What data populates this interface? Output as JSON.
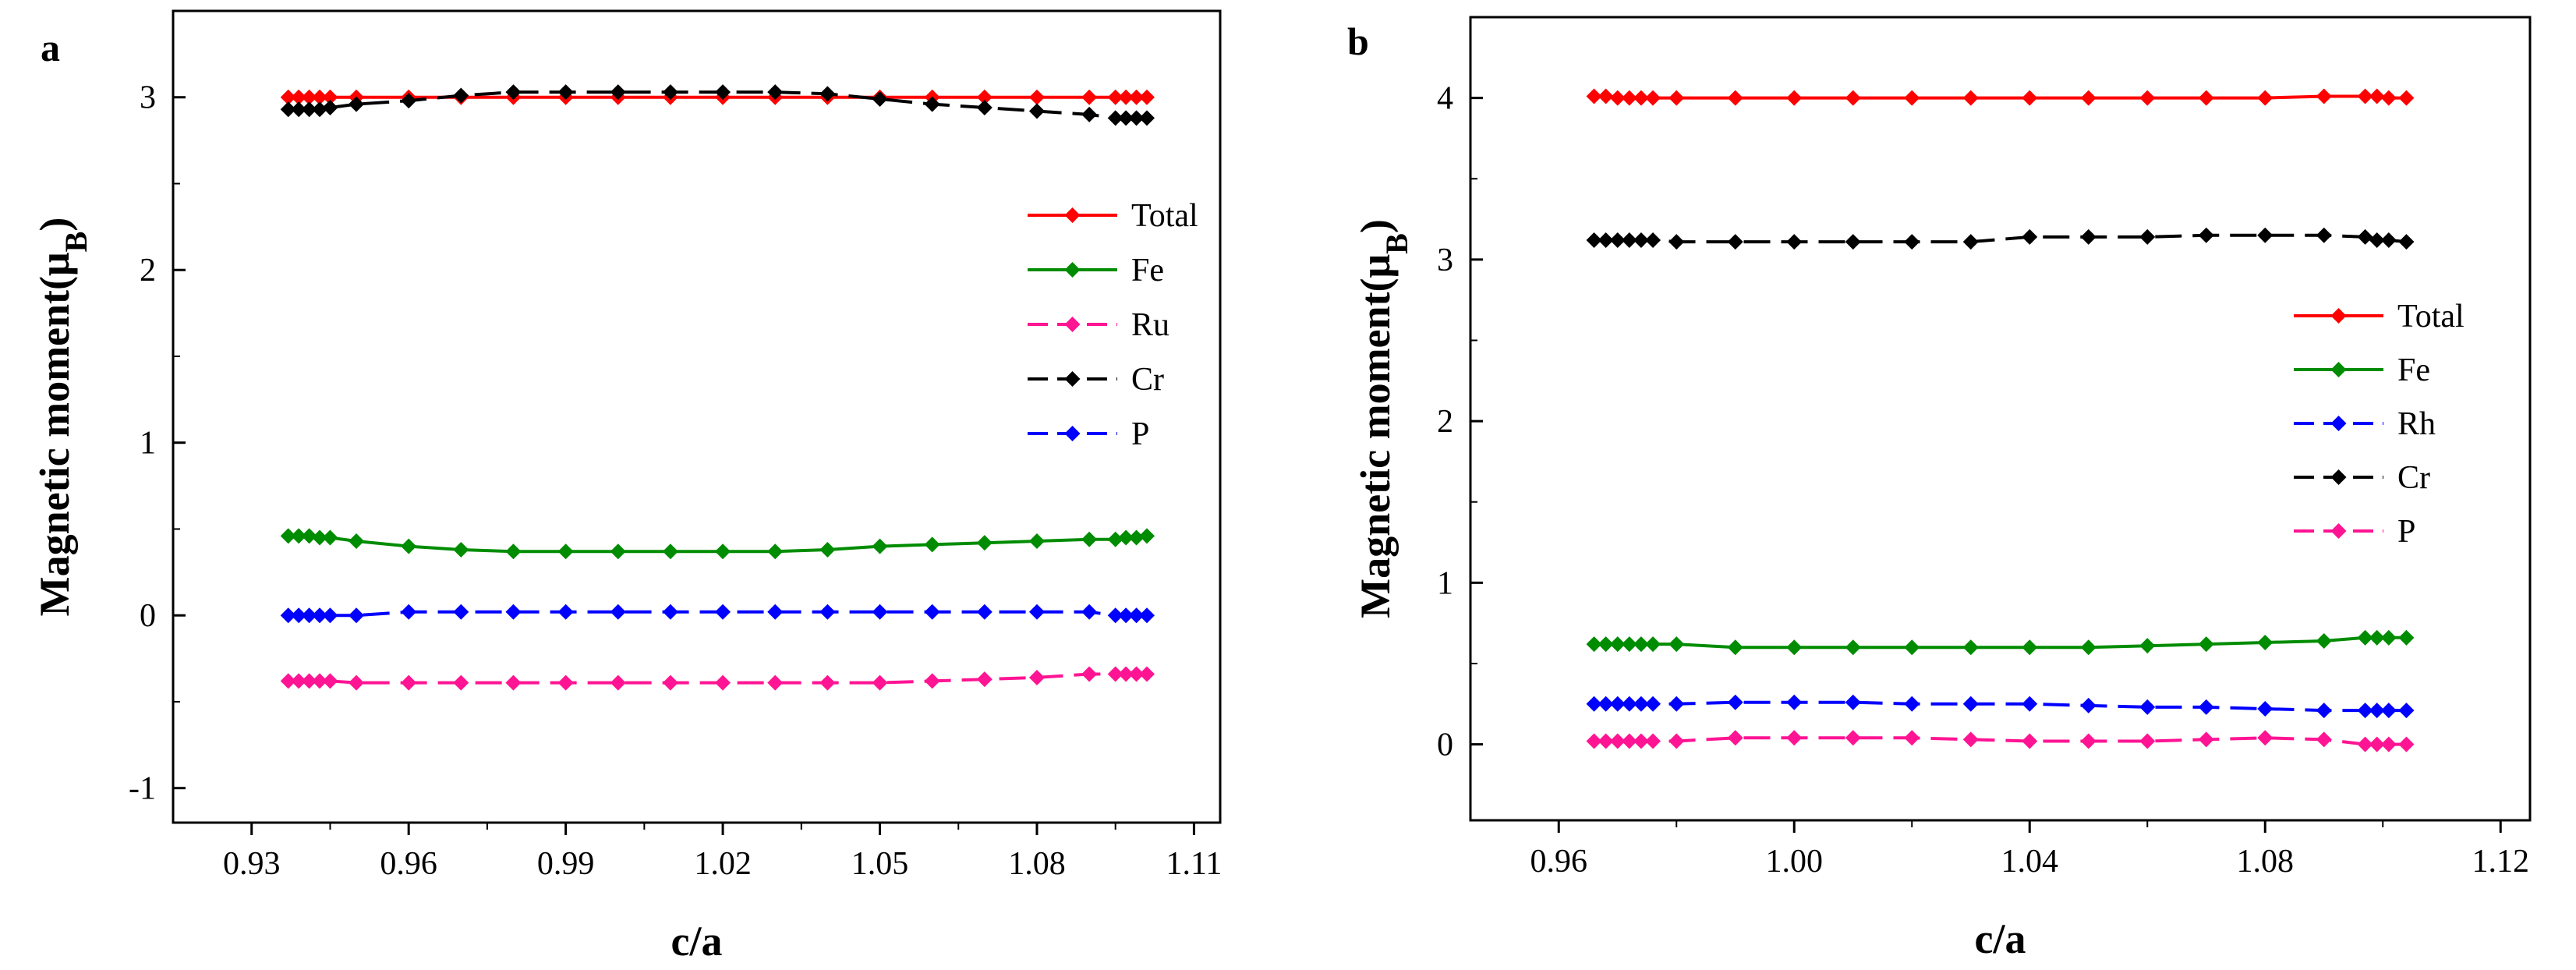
{
  "figure": {
    "panels": [
      "a",
      "b"
    ]
  },
  "chart_data": [
    {
      "panel": "a",
      "type": "line",
      "title": "",
      "xlabel": "c/a",
      "ylabel_main": "Magnetic moment(",
      "ylabel_mu": "μ",
      "ylabel_sub": "B",
      "ylabel_close": ")",
      "xlim": [
        0.915,
        1.115
      ],
      "ylim": [
        -1.2,
        3.5
      ],
      "xticks": [
        0.93,
        0.96,
        0.99,
        1.02,
        1.05,
        1.08,
        1.11
      ],
      "xtick_labels": [
        "0.93",
        "0.96",
        "0.99",
        "1.02",
        "1.05",
        "1.08",
        "1.11"
      ],
      "yticks": [
        -1,
        0,
        1,
        2,
        3
      ],
      "ytick_labels": [
        "-1",
        "0",
        "1",
        "2",
        "3"
      ],
      "legend_position": "right",
      "series": [
        {
          "name": "Total",
          "color": "#ff0000",
          "dash": "solid",
          "x": [
            0.937,
            0.939,
            0.941,
            0.943,
            0.945,
            0.95,
            0.96,
            0.97,
            0.98,
            0.99,
            1.0,
            1.01,
            1.02,
            1.03,
            1.04,
            1.05,
            1.06,
            1.07,
            1.08,
            1.09,
            1.095,
            1.097,
            1.099,
            1.101
          ],
          "y": [
            3.0,
            3.0,
            3.0,
            3.0,
            3.0,
            3.0,
            3.0,
            3.0,
            3.0,
            3.0,
            3.0,
            3.0,
            3.0,
            3.0,
            3.0,
            3.0,
            3.0,
            3.0,
            3.0,
            3.0,
            3.0,
            3.0,
            3.0,
            3.0
          ]
        },
        {
          "name": "Fe",
          "color": "#008c00",
          "dash": "solid",
          "x": [
            0.937,
            0.939,
            0.941,
            0.943,
            0.945,
            0.95,
            0.96,
            0.97,
            0.98,
            0.99,
            1.0,
            1.01,
            1.02,
            1.03,
            1.04,
            1.05,
            1.06,
            1.07,
            1.08,
            1.09,
            1.095,
            1.097,
            1.099,
            1.101
          ],
          "y": [
            0.46,
            0.46,
            0.46,
            0.45,
            0.45,
            0.43,
            0.4,
            0.38,
            0.37,
            0.37,
            0.37,
            0.37,
            0.37,
            0.37,
            0.38,
            0.4,
            0.41,
            0.42,
            0.43,
            0.44,
            0.44,
            0.45,
            0.45,
            0.46
          ]
        },
        {
          "name": "Ru",
          "color": "#ff1493",
          "dash": "dash",
          "x": [
            0.937,
            0.939,
            0.941,
            0.943,
            0.945,
            0.95,
            0.96,
            0.97,
            0.98,
            0.99,
            1.0,
            1.01,
            1.02,
            1.03,
            1.04,
            1.05,
            1.06,
            1.07,
            1.08,
            1.09,
            1.095,
            1.097,
            1.099,
            1.101
          ],
          "y": [
            -0.38,
            -0.38,
            -0.38,
            -0.38,
            -0.38,
            -0.39,
            -0.39,
            -0.39,
            -0.39,
            -0.39,
            -0.39,
            -0.39,
            -0.39,
            -0.39,
            -0.39,
            -0.39,
            -0.38,
            -0.37,
            -0.36,
            -0.34,
            -0.34,
            -0.34,
            -0.34,
            -0.34
          ]
        },
        {
          "name": "Cr",
          "color": "#000000",
          "dash": "dash",
          "x": [
            0.937,
            0.939,
            0.941,
            0.943,
            0.945,
            0.95,
            0.96,
            0.97,
            0.98,
            0.99,
            1.0,
            1.01,
            1.02,
            1.03,
            1.04,
            1.05,
            1.06,
            1.07,
            1.08,
            1.09,
            1.095,
            1.097,
            1.099,
            1.101
          ],
          "y": [
            2.93,
            2.93,
            2.93,
            2.93,
            2.94,
            2.96,
            2.98,
            3.01,
            3.03,
            3.03,
            3.03,
            3.03,
            3.03,
            3.03,
            3.02,
            2.99,
            2.96,
            2.94,
            2.92,
            2.9,
            2.88,
            2.88,
            2.88,
            2.88
          ]
        },
        {
          "name": "P",
          "color": "#0000ff",
          "dash": "dash",
          "x": [
            0.937,
            0.939,
            0.941,
            0.943,
            0.945,
            0.95,
            0.96,
            0.97,
            0.98,
            0.99,
            1.0,
            1.01,
            1.02,
            1.03,
            1.04,
            1.05,
            1.06,
            1.07,
            1.08,
            1.09,
            1.095,
            1.097,
            1.099,
            1.101
          ],
          "y": [
            0.0,
            0.0,
            0.0,
            0.0,
            0.0,
            0.0,
            0.02,
            0.02,
            0.02,
            0.02,
            0.02,
            0.02,
            0.02,
            0.02,
            0.02,
            0.02,
            0.02,
            0.02,
            0.02,
            0.02,
            0.0,
            0.0,
            0.0,
            0.0
          ]
        }
      ]
    },
    {
      "panel": "b",
      "type": "line",
      "title": "",
      "xlabel": "c/a",
      "ylabel_main": "Magnetic moment(",
      "ylabel_mu": "μ",
      "ylabel_sub": "B",
      "ylabel_close": ")",
      "xlim": [
        0.945,
        1.125
      ],
      "ylim": [
        -0.47,
        4.5
      ],
      "xticks": [
        0.96,
        1.0,
        1.04,
        1.08,
        1.12
      ],
      "xtick_labels": [
        "0.96",
        "1.00",
        "1.04",
        "1.08",
        "1.12"
      ],
      "yticks": [
        0,
        1,
        2,
        3,
        4
      ],
      "ytick_labels": [
        "0",
        "1",
        "2",
        "3",
        "4"
      ],
      "legend_position": "right",
      "series": [
        {
          "name": "Total",
          "color": "#ff0000",
          "dash": "solid",
          "x": [
            0.966,
            0.968,
            0.97,
            0.972,
            0.974,
            0.976,
            0.98,
            0.99,
            1.0,
            1.01,
            1.02,
            1.03,
            1.04,
            1.05,
            1.06,
            1.07,
            1.08,
            1.09,
            1.097,
            1.099,
            1.101,
            1.104
          ],
          "y": [
            4.01,
            4.01,
            4.0,
            4.0,
            4.0,
            4.0,
            4.0,
            4.0,
            4.0,
            4.0,
            4.0,
            4.0,
            4.0,
            4.0,
            4.0,
            4.0,
            4.0,
            4.01,
            4.01,
            4.01,
            4.0,
            4.0
          ]
        },
        {
          "name": "Fe",
          "color": "#008c00",
          "dash": "solid",
          "x": [
            0.966,
            0.968,
            0.97,
            0.972,
            0.974,
            0.976,
            0.98,
            0.99,
            1.0,
            1.01,
            1.02,
            1.03,
            1.04,
            1.05,
            1.06,
            1.07,
            1.08,
            1.09,
            1.097,
            1.099,
            1.101,
            1.104
          ],
          "y": [
            0.62,
            0.62,
            0.62,
            0.62,
            0.62,
            0.62,
            0.62,
            0.6,
            0.6,
            0.6,
            0.6,
            0.6,
            0.6,
            0.6,
            0.61,
            0.62,
            0.63,
            0.64,
            0.66,
            0.66,
            0.66,
            0.66
          ]
        },
        {
          "name": "Rh",
          "color": "#0000ff",
          "dash": "dash",
          "x": [
            0.966,
            0.968,
            0.97,
            0.972,
            0.974,
            0.976,
            0.98,
            0.99,
            1.0,
            1.01,
            1.02,
            1.03,
            1.04,
            1.05,
            1.06,
            1.07,
            1.08,
            1.09,
            1.097,
            1.099,
            1.101,
            1.104
          ],
          "y": [
            0.25,
            0.25,
            0.25,
            0.25,
            0.25,
            0.25,
            0.25,
            0.26,
            0.26,
            0.26,
            0.25,
            0.25,
            0.25,
            0.24,
            0.23,
            0.23,
            0.22,
            0.21,
            0.21,
            0.21,
            0.21,
            0.21
          ]
        },
        {
          "name": "Cr",
          "color": "#000000",
          "dash": "dash",
          "x": [
            0.966,
            0.968,
            0.97,
            0.972,
            0.974,
            0.976,
            0.98,
            0.99,
            1.0,
            1.01,
            1.02,
            1.03,
            1.04,
            1.05,
            1.06,
            1.07,
            1.08,
            1.09,
            1.097,
            1.099,
            1.101,
            1.104
          ],
          "y": [
            3.12,
            3.12,
            3.12,
            3.12,
            3.12,
            3.12,
            3.11,
            3.11,
            3.11,
            3.11,
            3.11,
            3.11,
            3.14,
            3.14,
            3.14,
            3.15,
            3.15,
            3.15,
            3.14,
            3.12,
            3.12,
            3.11
          ]
        },
        {
          "name": "P",
          "color": "#ff1493",
          "dash": "dash",
          "x": [
            0.966,
            0.968,
            0.97,
            0.972,
            0.974,
            0.976,
            0.98,
            0.99,
            1.0,
            1.01,
            1.02,
            1.03,
            1.04,
            1.05,
            1.06,
            1.07,
            1.08,
            1.09,
            1.097,
            1.099,
            1.101,
            1.104
          ],
          "y": [
            0.02,
            0.02,
            0.02,
            0.02,
            0.02,
            0.02,
            0.02,
            0.04,
            0.04,
            0.04,
            0.04,
            0.03,
            0.02,
            0.02,
            0.02,
            0.03,
            0.04,
            0.03,
            0.0,
            0.0,
            0.0,
            0.0
          ]
        }
      ]
    }
  ]
}
